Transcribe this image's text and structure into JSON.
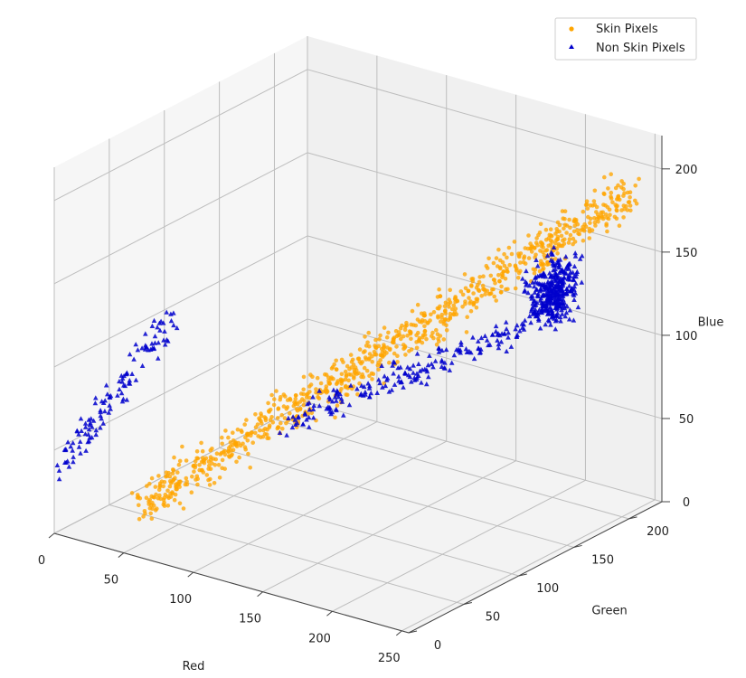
{
  "chart_data": {
    "type": "scatter",
    "projection": "3d",
    "title": "",
    "xlabel": "Red",
    "ylabel": "Green",
    "zlabel": "Blue",
    "xlim": [
      0,
      255
    ],
    "ylim": [
      0,
      230
    ],
    "zlim": [
      0,
      220
    ],
    "x_ticks": [
      0,
      50,
      100,
      150,
      200,
      250
    ],
    "y_ticks": [
      0,
      50,
      100,
      150,
      200
    ],
    "z_ticks": [
      0,
      50,
      100,
      150,
      200
    ],
    "grid": true,
    "legend": {
      "placement": "top-right"
    },
    "series": [
      {
        "name": "Skin Pixels",
        "color": "#ffa500",
        "marker": "circle",
        "point_count": 900,
        "clusters": [
          {
            "start": [
              45,
              20,
              20
            ],
            "end": [
              248,
              210,
              190
            ],
            "weight": 1.0,
            "spread": 9
          }
        ]
      },
      {
        "name": "Non Skin Pixels",
        "color": "#0000cc",
        "marker": "triangle",
        "point_count": 680,
        "clusters": [
          {
            "start": [
              2,
              5,
              40
            ],
            "end": [
              25,
              75,
              110
            ],
            "weight": 0.18,
            "spread": 7
          },
          {
            "start": [
              150,
              25,
              95
            ],
            "end": [
              245,
              120,
              140
            ],
            "weight": 0.28,
            "spread": 6
          },
          {
            "center": [
              240,
              150,
              150
            ],
            "weight": 0.54,
            "spread": 13
          }
        ]
      }
    ]
  }
}
